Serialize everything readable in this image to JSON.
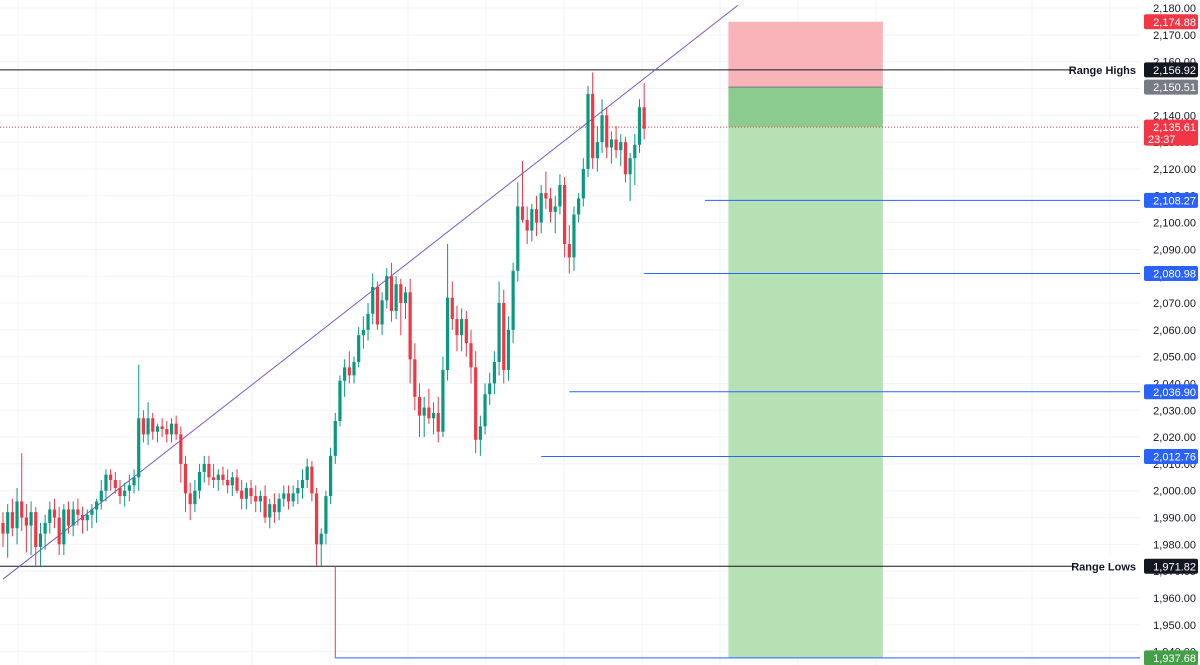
{
  "chart_data": {
    "type": "candlestick",
    "ylim": [
      1935,
      2183
    ],
    "grid": true,
    "colors": {
      "up": "#089981",
      "down": "#f23645",
      "trendline": "#7e57c2",
      "support_lines": "#2962ff",
      "range_lines": "#131722",
      "stop_zone": "#f7a7ad",
      "target_zone": "#b2dfb1",
      "entry_zone": "#86c98a",
      "current_price_line": "#f23645"
    },
    "y_ticks": [
      "1,940.00",
      "1,950.00",
      "1,960.00",
      "1,970.00",
      "1,980.00",
      "1,990.00",
      "2,000.00",
      "2,010.00",
      "2,020.00",
      "2,030.00",
      "2,040.00",
      "2,050.00",
      "2,060.00",
      "2,070.00",
      "2,080.00",
      "2,090.00",
      "2,100.00",
      "2,110.00",
      "2,120.00",
      "2,130.00",
      "2,140.00",
      "2,150.00",
      "2,160.00",
      "2,170.00",
      "2,180.00"
    ],
    "price_tags": [
      {
        "value": "2,174.88",
        "price": 2174.88,
        "color": "#f23645"
      },
      {
        "value": "2,156.92",
        "price": 2156.92,
        "color": "#131722"
      },
      {
        "value": "2,150.51",
        "price": 2150.51,
        "color": "#787b86"
      },
      {
        "value": "2,135.61",
        "price": 2135.61,
        "color": "#f23645",
        "sub": "23:37"
      },
      {
        "value": "2,108.27",
        "price": 2108.27,
        "color": "#2962ff"
      },
      {
        "value": "2,080.98",
        "price": 2080.98,
        "color": "#2962ff"
      },
      {
        "value": "2,036.90",
        "price": 2036.9,
        "color": "#2962ff"
      },
      {
        "value": "2,012.76",
        "price": 2012.76,
        "color": "#2962ff"
      },
      {
        "value": "1,971.82",
        "price": 1971.82,
        "color": "#131722"
      },
      {
        "value": "1,937.68",
        "price": 1937.68,
        "color": "#43a047"
      }
    ],
    "level_labels": [
      {
        "text": "Range Highs",
        "price": 2156.92
      },
      {
        "text": "Range Lows",
        "price": 1971.82
      }
    ],
    "trendline": {
      "from": [
        0,
        1967
      ],
      "to": [
        157,
        2181
      ]
    },
    "horizontal_lines": [
      {
        "price": 2156.92,
        "from_bar": 0,
        "style": "range"
      },
      {
        "price": 1971.82,
        "from_bar": 0,
        "style": "range"
      },
      {
        "price": 2108.27,
        "from_bar": 150,
        "style": "support"
      },
      {
        "price": 2080.98,
        "from_bar": 137,
        "style": "support"
      },
      {
        "price": 2036.9,
        "from_bar": 121,
        "style": "support"
      },
      {
        "price": 2012.76,
        "from_bar": 115,
        "style": "support"
      },
      {
        "price": 1937.68,
        "from_bar": 71,
        "style": "support"
      }
    ],
    "position": {
      "start_bar": 155,
      "end_bar": 188,
      "entry": 2150.51,
      "stop": 2174.88,
      "target": 1937.68,
      "current": 2135.61
    },
    "candles": [
      {
        "o": 1988,
        "h": 1992,
        "l": 1979,
        "c": 1984
      },
      {
        "o": 1984,
        "h": 1995,
        "l": 1975,
        "c": 1992
      },
      {
        "o": 1992,
        "h": 1997,
        "l": 1983,
        "c": 1986
      },
      {
        "o": 1986,
        "h": 2001,
        "l": 1980,
        "c": 1996
      },
      {
        "o": 1996,
        "h": 2014,
        "l": 1985,
        "c": 1990
      },
      {
        "o": 1990,
        "h": 1995,
        "l": 1977,
        "c": 1987
      },
      {
        "o": 1987,
        "h": 1996,
        "l": 1976,
        "c": 1992
      },
      {
        "o": 1992,
        "h": 1994,
        "l": 1972,
        "c": 1979
      },
      {
        "o": 1979,
        "h": 1988,
        "l": 1972,
        "c": 1984
      },
      {
        "o": 1984,
        "h": 1991,
        "l": 1978,
        "c": 1988
      },
      {
        "o": 1988,
        "h": 1996,
        "l": 1984,
        "c": 1993
      },
      {
        "o": 1993,
        "h": 1997,
        "l": 1986,
        "c": 1990
      },
      {
        "o": 1990,
        "h": 1994,
        "l": 1976,
        "c": 1980
      },
      {
        "o": 1980,
        "h": 1995,
        "l": 1976,
        "c": 1993
      },
      {
        "o": 1993,
        "h": 1996,
        "l": 1984,
        "c": 1987
      },
      {
        "o": 1987,
        "h": 1996,
        "l": 1983,
        "c": 1993
      },
      {
        "o": 1993,
        "h": 1997,
        "l": 1987,
        "c": 1991
      },
      {
        "o": 1991,
        "h": 1994,
        "l": 1984,
        "c": 1989
      },
      {
        "o": 1989,
        "h": 1993,
        "l": 1985,
        "c": 1991
      },
      {
        "o": 1991,
        "h": 1995,
        "l": 1986,
        "c": 1993
      },
      {
        "o": 1993,
        "h": 1997,
        "l": 1988,
        "c": 1996
      },
      {
        "o": 1996,
        "h": 2004,
        "l": 1993,
        "c": 2000
      },
      {
        "o": 2000,
        "h": 2008,
        "l": 1996,
        "c": 2006
      },
      {
        "o": 2006,
        "h": 2008,
        "l": 2000,
        "c": 2004
      },
      {
        "o": 2004,
        "h": 2007,
        "l": 1999,
        "c": 2001
      },
      {
        "o": 2001,
        "h": 2004,
        "l": 1995,
        "c": 1998
      },
      {
        "o": 1998,
        "h": 2003,
        "l": 1994,
        "c": 2000
      },
      {
        "o": 2000,
        "h": 2006,
        "l": 1996,
        "c": 2002
      },
      {
        "o": 2002,
        "h": 2008,
        "l": 1999,
        "c": 2005
      },
      {
        "o": 2005,
        "h": 2047,
        "l": 2000,
        "c": 2027
      },
      {
        "o": 2027,
        "h": 2030,
        "l": 2018,
        "c": 2021
      },
      {
        "o": 2021,
        "h": 2033,
        "l": 2017,
        "c": 2027
      },
      {
        "o": 2027,
        "h": 2029,
        "l": 2019,
        "c": 2022
      },
      {
        "o": 2022,
        "h": 2025,
        "l": 2018,
        "c": 2024
      },
      {
        "o": 2024,
        "h": 2027,
        "l": 2020,
        "c": 2023
      },
      {
        "o": 2023,
        "h": 2026,
        "l": 2018,
        "c": 2021
      },
      {
        "o": 2021,
        "h": 2027,
        "l": 2018,
        "c": 2025
      },
      {
        "o": 2025,
        "h": 2028,
        "l": 2019,
        "c": 2021
      },
      {
        "o": 2021,
        "h": 2024,
        "l": 2003,
        "c": 2010
      },
      {
        "o": 2010,
        "h": 2013,
        "l": 1992,
        "c": 1999
      },
      {
        "o": 1999,
        "h": 2003,
        "l": 1989,
        "c": 1995
      },
      {
        "o": 1995,
        "h": 2004,
        "l": 1992,
        "c": 2000
      },
      {
        "o": 2000,
        "h": 2010,
        "l": 1997,
        "c": 2007
      },
      {
        "o": 2007,
        "h": 2013,
        "l": 2003,
        "c": 2010
      },
      {
        "o": 2010,
        "h": 2013,
        "l": 2002,
        "c": 2005
      },
      {
        "o": 2005,
        "h": 2010,
        "l": 2001,
        "c": 2004
      },
      {
        "o": 2004,
        "h": 2008,
        "l": 2000,
        "c": 2006
      },
      {
        "o": 2006,
        "h": 2009,
        "l": 2002,
        "c": 2004
      },
      {
        "o": 2004,
        "h": 2008,
        "l": 1999,
        "c": 2002
      },
      {
        "o": 2002,
        "h": 2007,
        "l": 1998,
        "c": 2005
      },
      {
        "o": 2005,
        "h": 2008,
        "l": 1999,
        "c": 2000
      },
      {
        "o": 2000,
        "h": 2004,
        "l": 1993,
        "c": 1997
      },
      {
        "o": 1997,
        "h": 2003,
        "l": 1993,
        "c": 2001
      },
      {
        "o": 2001,
        "h": 2004,
        "l": 1995,
        "c": 1998
      },
      {
        "o": 1998,
        "h": 2002,
        "l": 1992,
        "c": 1996
      },
      {
        "o": 1996,
        "h": 2000,
        "l": 1992,
        "c": 1998
      },
      {
        "o": 1998,
        "h": 2002,
        "l": 1988,
        "c": 1990
      },
      {
        "o": 1990,
        "h": 1997,
        "l": 1986,
        "c": 1995
      },
      {
        "o": 1995,
        "h": 1999,
        "l": 1988,
        "c": 1992
      },
      {
        "o": 1992,
        "h": 1999,
        "l": 1989,
        "c": 1997
      },
      {
        "o": 1997,
        "h": 2002,
        "l": 1994,
        "c": 1999
      },
      {
        "o": 1999,
        "h": 2002,
        "l": 1993,
        "c": 1996
      },
      {
        "o": 1996,
        "h": 2002,
        "l": 1994,
        "c": 1999
      },
      {
        "o": 1999,
        "h": 2004,
        "l": 1995,
        "c": 2001
      },
      {
        "o": 2001,
        "h": 2008,
        "l": 1997,
        "c": 2004
      },
      {
        "o": 2004,
        "h": 2012,
        "l": 2001,
        "c": 2009
      },
      {
        "o": 2009,
        "h": 2011,
        "l": 1996,
        "c": 1999
      },
      {
        "o": 1999,
        "h": 2001,
        "l": 1972,
        "c": 1980
      },
      {
        "o": 1980,
        "h": 1986,
        "l": 1972,
        "c": 1984
      },
      {
        "o": 1984,
        "h": 2000,
        "l": 1980,
        "c": 1998
      },
      {
        "o": 1998,
        "h": 2016,
        "l": 1995,
        "c": 2013
      },
      {
        "o": 2013,
        "h": 2029,
        "l": 2010,
        "c": 2026
      },
      {
        "o": 2026,
        "h": 2043,
        "l": 2024,
        "c": 2041
      },
      {
        "o": 2041,
        "h": 2049,
        "l": 2035,
        "c": 2046
      },
      {
        "o": 2046,
        "h": 2052,
        "l": 2040,
        "c": 2043
      },
      {
        "o": 2043,
        "h": 2050,
        "l": 2040,
        "c": 2048
      },
      {
        "o": 2048,
        "h": 2061,
        "l": 2046,
        "c": 2058
      },
      {
        "o": 2058,
        "h": 2065,
        "l": 2053,
        "c": 2060
      },
      {
        "o": 2060,
        "h": 2070,
        "l": 2056,
        "c": 2066
      },
      {
        "o": 2066,
        "h": 2081,
        "l": 2062,
        "c": 2076
      },
      {
        "o": 2076,
        "h": 2078,
        "l": 2060,
        "c": 2062
      },
      {
        "o": 2062,
        "h": 2074,
        "l": 2058,
        "c": 2071
      },
      {
        "o": 2071,
        "h": 2083,
        "l": 2068,
        "c": 2080
      },
      {
        "o": 2080,
        "h": 2085,
        "l": 2063,
        "c": 2067
      },
      {
        "o": 2067,
        "h": 2080,
        "l": 2064,
        "c": 2077
      },
      {
        "o": 2077,
        "h": 2079,
        "l": 2058,
        "c": 2070
      },
      {
        "o": 2070,
        "h": 2076,
        "l": 2064,
        "c": 2074
      },
      {
        "o": 2074,
        "h": 2079,
        "l": 2040,
        "c": 2049
      },
      {
        "o": 2049,
        "h": 2055,
        "l": 2030,
        "c": 2035
      },
      {
        "o": 2035,
        "h": 2040,
        "l": 2020,
        "c": 2028
      },
      {
        "o": 2028,
        "h": 2035,
        "l": 2020,
        "c": 2031
      },
      {
        "o": 2031,
        "h": 2038,
        "l": 2025,
        "c": 2027
      },
      {
        "o": 2027,
        "h": 2033,
        "l": 2021,
        "c": 2029
      },
      {
        "o": 2029,
        "h": 2035,
        "l": 2018,
        "c": 2022
      },
      {
        "o": 2022,
        "h": 2050,
        "l": 2020,
        "c": 2045
      },
      {
        "o": 2045,
        "h": 2092,
        "l": 2041,
        "c": 2072
      },
      {
        "o": 2072,
        "h": 2078,
        "l": 2060,
        "c": 2064
      },
      {
        "o": 2064,
        "h": 2069,
        "l": 2052,
        "c": 2058
      },
      {
        "o": 2058,
        "h": 2068,
        "l": 2052,
        "c": 2064
      },
      {
        "o": 2064,
        "h": 2067,
        "l": 2050,
        "c": 2055
      },
      {
        "o": 2055,
        "h": 2060,
        "l": 2040,
        "c": 2046
      },
      {
        "o": 2046,
        "h": 2052,
        "l": 2014,
        "c": 2019
      },
      {
        "o": 2019,
        "h": 2028,
        "l": 2013,
        "c": 2024
      },
      {
        "o": 2024,
        "h": 2040,
        "l": 2021,
        "c": 2036
      },
      {
        "o": 2036,
        "h": 2044,
        "l": 2032,
        "c": 2040
      },
      {
        "o": 2040,
        "h": 2052,
        "l": 2036,
        "c": 2048
      },
      {
        "o": 2048,
        "h": 2078,
        "l": 2043,
        "c": 2070
      },
      {
        "o": 2070,
        "h": 2075,
        "l": 2040,
        "c": 2045
      },
      {
        "o": 2045,
        "h": 2065,
        "l": 2041,
        "c": 2060
      },
      {
        "o": 2060,
        "h": 2085,
        "l": 2055,
        "c": 2082
      },
      {
        "o": 2082,
        "h": 2115,
        "l": 2078,
        "c": 2106
      },
      {
        "o": 2106,
        "h": 2123,
        "l": 2100,
        "c": 2101
      },
      {
        "o": 2101,
        "h": 2106,
        "l": 2092,
        "c": 2097
      },
      {
        "o": 2097,
        "h": 2107,
        "l": 2093,
        "c": 2105
      },
      {
        "o": 2105,
        "h": 2110,
        "l": 2095,
        "c": 2100
      },
      {
        "o": 2100,
        "h": 2114,
        "l": 2096,
        "c": 2111
      },
      {
        "o": 2111,
        "h": 2119,
        "l": 2105,
        "c": 2109
      },
      {
        "o": 2109,
        "h": 2113,
        "l": 2100,
        "c": 2104
      },
      {
        "o": 2104,
        "h": 2110,
        "l": 2096,
        "c": 2106
      },
      {
        "o": 2106,
        "h": 2118,
        "l": 2103,
        "c": 2114
      },
      {
        "o": 2114,
        "h": 2117,
        "l": 2087,
        "c": 2092
      },
      {
        "o": 2092,
        "h": 2099,
        "l": 2081,
        "c": 2087
      },
      {
        "o": 2087,
        "h": 2106,
        "l": 2082,
        "c": 2103
      },
      {
        "o": 2103,
        "h": 2111,
        "l": 2100,
        "c": 2109
      },
      {
        "o": 2109,
        "h": 2124,
        "l": 2106,
        "c": 2120
      },
      {
        "o": 2120,
        "h": 2151,
        "l": 2117,
        "c": 2148
      },
      {
        "o": 2148,
        "h": 2156,
        "l": 2120,
        "c": 2124
      },
      {
        "o": 2124,
        "h": 2136,
        "l": 2119,
        "c": 2130
      },
      {
        "o": 2130,
        "h": 2146,
        "l": 2126,
        "c": 2140
      },
      {
        "o": 2140,
        "h": 2143,
        "l": 2124,
        "c": 2128
      },
      {
        "o": 2128,
        "h": 2134,
        "l": 2122,
        "c": 2131
      },
      {
        "o": 2131,
        "h": 2136,
        "l": 2124,
        "c": 2127
      },
      {
        "o": 2127,
        "h": 2133,
        "l": 2121,
        "c": 2130
      },
      {
        "o": 2130,
        "h": 2132,
        "l": 2115,
        "c": 2118
      },
      {
        "o": 2118,
        "h": 2126,
        "l": 2108,
        "c": 2124
      },
      {
        "o": 2124,
        "h": 2133,
        "l": 2114,
        "c": 2129
      },
      {
        "o": 2129,
        "h": 2146,
        "l": 2126,
        "c": 2143
      },
      {
        "o": 2143,
        "h": 2152,
        "l": 2131,
        "c": 2135
      }
    ]
  }
}
